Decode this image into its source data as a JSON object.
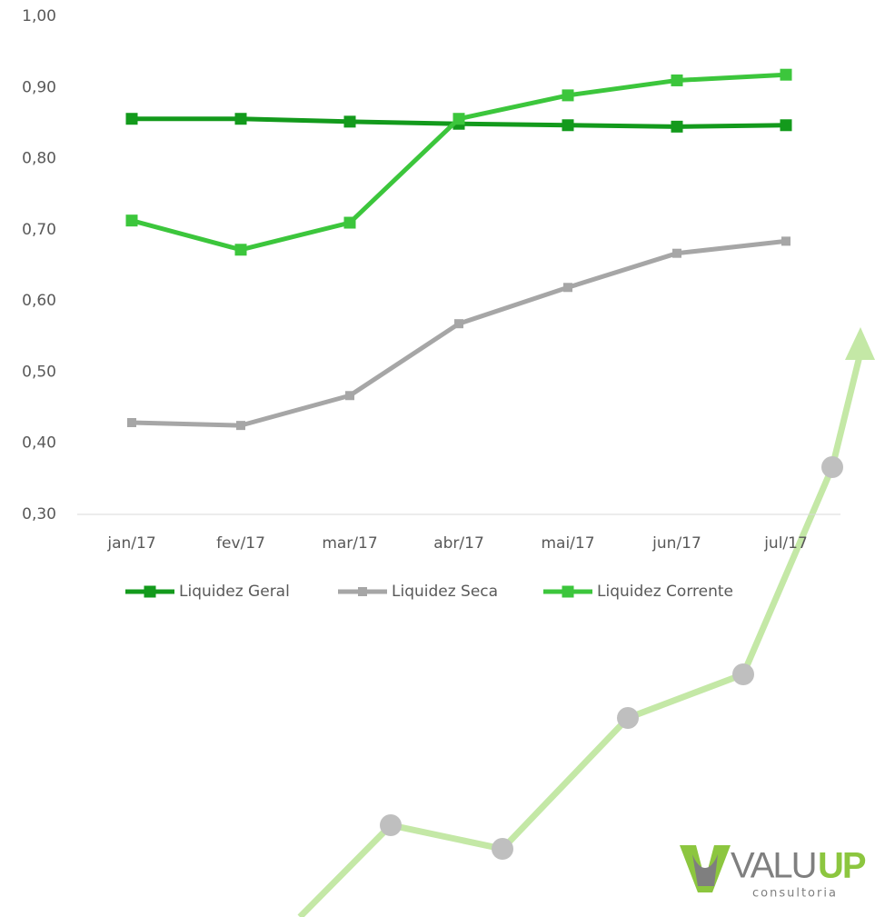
{
  "chart_data": {
    "type": "line",
    "categories": [
      "jan/17",
      "fev/17",
      "mar/17",
      "abr/17",
      "mai/17",
      "jun/17",
      "jul/17"
    ],
    "series": [
      {
        "name": "Liquidez Geral",
        "color": "#139a1c",
        "values": [
          0.856,
          0.856,
          0.852,
          0.849,
          0.847,
          0.845,
          0.847
        ]
      },
      {
        "name": "Liquidez Seca",
        "color": "#a6a6a6",
        "values": [
          0.429,
          0.425,
          0.467,
          0.568,
          0.619,
          0.667,
          0.684
        ]
      },
      {
        "name": "Liquidez Corrente",
        "color": "#3cc63c",
        "values": [
          0.713,
          0.672,
          0.71,
          0.856,
          0.889,
          0.91,
          0.918
        ]
      }
    ],
    "ylim": [
      0.3,
      1.0
    ],
    "yticks": [
      {
        "value": 0.3,
        "label": "0,30"
      },
      {
        "value": 0.4,
        "label": "0,40"
      },
      {
        "value": 0.5,
        "label": "0,50"
      },
      {
        "value": 0.6,
        "label": "0,60"
      },
      {
        "value": 0.7,
        "label": "0,70"
      },
      {
        "value": 0.8,
        "label": "0,80"
      },
      {
        "value": 0.9,
        "label": "0,90"
      },
      {
        "value": 1.0,
        "label": "1,00"
      }
    ],
    "legend": "bottom"
  },
  "logo": {
    "brand_gray": "VALU",
    "brand_green": "UP",
    "tagline": "consultoria"
  }
}
